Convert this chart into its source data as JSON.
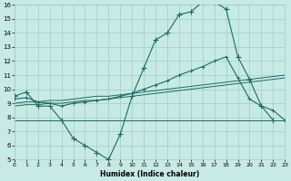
{
  "xlabel": "Humidex (Indice chaleur)",
  "xlim": [
    0,
    23
  ],
  "ylim": [
    5,
    16
  ],
  "xticks": [
    0,
    1,
    2,
    3,
    4,
    5,
    6,
    7,
    8,
    9,
    10,
    11,
    12,
    13,
    14,
    15,
    16,
    17,
    18,
    19,
    20,
    21,
    22,
    23
  ],
  "yticks": [
    5,
    6,
    7,
    8,
    9,
    10,
    11,
    12,
    13,
    14,
    15,
    16
  ],
  "bg_color": "#c8eae4",
  "grid_color": "#a0ccc6",
  "line_color": "#1a6b60",
  "curve_x": [
    0,
    1,
    2,
    3,
    4,
    5,
    6,
    7,
    8,
    9,
    10,
    11,
    12,
    13,
    14,
    15,
    16,
    17,
    18,
    19,
    20,
    21,
    22
  ],
  "curve_y": [
    9.5,
    9.8,
    8.8,
    8.8,
    7.8,
    6.5,
    6.0,
    5.5,
    5.0,
    6.8,
    9.5,
    11.5,
    13.5,
    14.0,
    15.3,
    15.5,
    16.2,
    16.2,
    15.7,
    12.3,
    10.7,
    8.8,
    7.8
  ],
  "line1_x": [
    0,
    1,
    2,
    3,
    4,
    5,
    6,
    7,
    8,
    9,
    10,
    11,
    12,
    13,
    14,
    15,
    16,
    17,
    18,
    19,
    20,
    21,
    22,
    23
  ],
  "line1_y": [
    9.3,
    9.4,
    9.1,
    9.0,
    8.8,
    9.0,
    9.1,
    9.2,
    9.3,
    9.5,
    9.7,
    10.0,
    10.3,
    10.6,
    11.0,
    11.3,
    11.6,
    12.0,
    12.3,
    10.8,
    9.3,
    8.8,
    8.5,
    7.8
  ],
  "line2_x": [
    0,
    1,
    2,
    3,
    4,
    5,
    6,
    7,
    8,
    9,
    10,
    11,
    12,
    13,
    14,
    15,
    16,
    17,
    18,
    19,
    20,
    21,
    22,
    23
  ],
  "line2_y": [
    9.0,
    9.1,
    9.1,
    9.2,
    9.2,
    9.3,
    9.4,
    9.5,
    9.5,
    9.6,
    9.7,
    9.8,
    9.9,
    10.0,
    10.1,
    10.2,
    10.3,
    10.4,
    10.5,
    10.6,
    10.7,
    10.8,
    10.9,
    11.0
  ],
  "line3_x": [
    0,
    1,
    2,
    3,
    4,
    5,
    6,
    7,
    8,
    9,
    10,
    11,
    12,
    13,
    14,
    15,
    16,
    17,
    18,
    19,
    20,
    21,
    22,
    23
  ],
  "line3_y": [
    8.8,
    8.9,
    8.9,
    9.0,
    9.0,
    9.1,
    9.2,
    9.2,
    9.3,
    9.4,
    9.5,
    9.6,
    9.7,
    9.8,
    9.9,
    10.0,
    10.1,
    10.2,
    10.3,
    10.4,
    10.5,
    10.6,
    10.7,
    10.8
  ],
  "line4_x": [
    0,
    2,
    3,
    4,
    5,
    6,
    7,
    8,
    9,
    10,
    11,
    12,
    13,
    14,
    15,
    16,
    17,
    18,
    19,
    20,
    21,
    22,
    23
  ],
  "line4_y": [
    7.8,
    7.8,
    7.8,
    7.8,
    7.8,
    7.8,
    7.8,
    7.8,
    7.8,
    7.8,
    7.8,
    7.8,
    7.8,
    7.8,
    7.8,
    7.8,
    7.8,
    7.8,
    7.8,
    7.8,
    7.8,
    7.8,
    7.8
  ]
}
